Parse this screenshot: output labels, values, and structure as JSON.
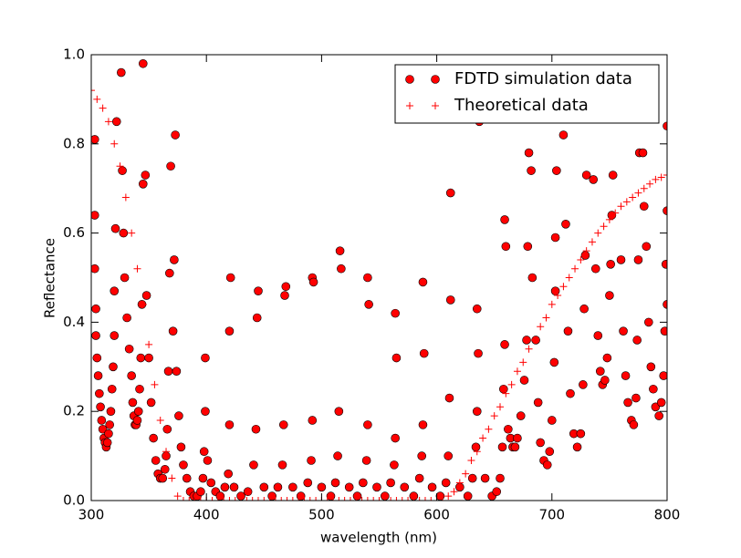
{
  "chart_data": {
    "type": "scatter",
    "xlabel": "wavelength (nm)",
    "ylabel": "Reflectance",
    "xlim": [
      300,
      800
    ],
    "ylim": [
      0,
      1
    ],
    "xticks": [
      300,
      400,
      500,
      600,
      700,
      800
    ],
    "yticks": [
      {
        "value": 0,
        "label": "0.0"
      },
      0.2,
      0.4,
      0.6,
      0.8,
      {
        "value": 1,
        "label": "1.0"
      }
    ],
    "legend": "upper right",
    "series": [
      {
        "name": "FDTD simulation data",
        "color": "#ff0000",
        "marker": "o",
        "x": [
          303,
          303,
          303,
          304,
          304,
          305,
          306,
          307,
          308,
          309,
          310,
          311,
          312,
          313,
          314,
          315,
          316,
          317,
          318,
          319,
          320,
          320,
          321,
          322,
          326,
          327,
          328,
          329,
          331,
          333,
          335,
          336,
          337,
          338,
          339,
          340,
          341,
          342,
          343,
          344,
          345,
          345,
          347,
          348,
          350,
          352,
          354,
          356,
          358,
          360,
          362,
          364,
          365,
          366,
          367,
          368,
          369,
          373,
          372,
          371,
          374,
          376,
          378,
          380,
          383,
          386,
          389,
          392,
          395,
          397,
          398,
          399,
          399,
          401,
          404,
          408,
          412,
          416,
          419,
          420,
          420,
          421,
          424,
          430,
          436,
          441,
          443,
          444,
          445,
          450,
          457,
          462,
          466,
          467,
          468,
          469,
          475,
          482,
          488,
          491,
          492,
          492,
          493,
          500,
          508,
          512,
          514,
          515,
          516,
          517,
          524,
          531,
          536,
          539,
          540,
          540,
          541,
          548,
          555,
          560,
          563,
          564,
          564,
          565,
          572,
          580,
          585,
          587,
          588,
          588,
          589,
          596,
          603,
          608,
          610,
          611,
          612,
          612,
          620,
          627,
          631,
          634,
          635,
          635,
          636,
          637,
          642,
          648,
          652,
          655,
          657,
          658,
          659,
          659,
          660,
          662,
          664,
          666,
          668,
          670,
          673,
          676,
          678,
          679,
          680,
          682,
          683,
          686,
          688,
          690,
          693,
          696,
          698,
          700,
          702,
          703,
          703,
          704,
          710,
          712,
          714,
          716,
          719,
          722,
          725,
          727,
          728,
          729,
          730,
          736,
          738,
          740,
          742,
          744,
          746,
          748,
          750,
          751,
          752,
          753,
          760,
          762,
          764,
          766,
          769,
          771,
          773,
          774,
          775,
          776,
          779,
          780,
          782,
          784,
          786,
          788,
          790,
          793,
          795,
          797,
          798,
          799,
          800,
          800,
          800
        ],
        "values": [
          0.81,
          0.64,
          0.52,
          0.43,
          0.37,
          0.32,
          0.28,
          0.24,
          0.21,
          0.18,
          0.16,
          0.14,
          0.13,
          0.12,
          0.13,
          0.15,
          0.17,
          0.2,
          0.25,
          0.3,
          0.37,
          0.47,
          0.61,
          0.85,
          0.96,
          0.74,
          0.6,
          0.5,
          0.41,
          0.34,
          0.28,
          0.22,
          0.19,
          0.17,
          0.17,
          0.18,
          0.2,
          0.25,
          0.32,
          0.44,
          0.71,
          0.98,
          0.73,
          0.46,
          0.32,
          0.22,
          0.14,
          0.09,
          0.06,
          0.05,
          0.05,
          0.07,
          0.1,
          0.16,
          0.29,
          0.51,
          0.75,
          0.82,
          0.54,
          0.38,
          0.29,
          0.19,
          0.12,
          0.08,
          0.05,
          0.02,
          0.01,
          0.01,
          0.02,
          0.05,
          0.11,
          0.2,
          0.32,
          0.09,
          0.04,
          0.02,
          0.01,
          0.03,
          0.06,
          0.17,
          0.38,
          0.5,
          0.03,
          0.01,
          0.02,
          0.08,
          0.16,
          0.41,
          0.47,
          0.03,
          0.01,
          0.03,
          0.08,
          0.17,
          0.46,
          0.48,
          0.03,
          0.01,
          0.04,
          0.09,
          0.18,
          0.5,
          0.49,
          0.03,
          0.01,
          0.04,
          0.1,
          0.2,
          0.56,
          0.52,
          0.03,
          0.01,
          0.04,
          0.09,
          0.17,
          0.5,
          0.44,
          0.03,
          0.01,
          0.04,
          0.08,
          0.14,
          0.42,
          0.32,
          0.03,
          0.01,
          0.05,
          0.1,
          0.17,
          0.49,
          0.33,
          0.03,
          0.01,
          0.04,
          0.1,
          0.23,
          0.69,
          0.45,
          0.03,
          0.01,
          0.05,
          0.12,
          0.2,
          0.43,
          0.33,
          0.85,
          0.05,
          0.01,
          0.02,
          0.05,
          0.12,
          0.25,
          0.35,
          0.63,
          0.57,
          0.16,
          0.14,
          0.12,
          0.12,
          0.14,
          0.19,
          0.27,
          0.36,
          0.57,
          0.78,
          0.74,
          0.5,
          0.36,
          0.22,
          0.13,
          0.09,
          0.08,
          0.11,
          0.18,
          0.31,
          0.47,
          0.59,
          0.74,
          0.82,
          0.62,
          0.38,
          0.24,
          0.15,
          0.12,
          0.15,
          0.26,
          0.43,
          0.55,
          0.73,
          0.72,
          0.52,
          0.37,
          0.29,
          0.26,
          0.27,
          0.32,
          0.46,
          0.53,
          0.64,
          0.73,
          0.54,
          0.38,
          0.28,
          0.22,
          0.18,
          0.17,
          0.23,
          0.36,
          0.54,
          0.78,
          0.78,
          0.66,
          0.57,
          0.4,
          0.3,
          0.25,
          0.21,
          0.19,
          0.22,
          0.28,
          0.38,
          0.53,
          0.65,
          0.84,
          0.44
        ]
      },
      {
        "name": "Theoretical data",
        "color": "#ff0000",
        "marker": "+",
        "x": [
          300,
          305,
          310,
          315,
          320,
          325,
          330,
          335,
          340,
          345,
          350,
          355,
          360,
          365,
          370,
          375,
          380,
          385,
          390,
          395,
          400,
          405,
          410,
          415,
          420,
          425,
          430,
          435,
          440,
          445,
          450,
          455,
          460,
          465,
          470,
          475,
          480,
          485,
          490,
          495,
          500,
          505,
          510,
          515,
          520,
          525,
          530,
          535,
          540,
          545,
          550,
          555,
          560,
          565,
          570,
          575,
          580,
          585,
          590,
          595,
          600,
          605,
          610,
          615,
          620,
          625,
          630,
          635,
          640,
          645,
          650,
          655,
          660,
          665,
          670,
          675,
          680,
          685,
          690,
          695,
          700,
          705,
          710,
          715,
          720,
          725,
          730,
          735,
          740,
          745,
          750,
          755,
          760,
          765,
          770,
          775,
          780,
          785,
          790,
          795,
          800
        ],
        "values": [
          0.92,
          0.9,
          0.88,
          0.85,
          0.8,
          0.75,
          0.68,
          0.6,
          0.52,
          0.44,
          0.35,
          0.26,
          0.18,
          0.11,
          0.05,
          0.01,
          0,
          0,
          0,
          0,
          0,
          0,
          0,
          0,
          0,
          0,
          0,
          0,
          0,
          0,
          0,
          0,
          0,
          0,
          0,
          0,
          0,
          0,
          0,
          0,
          0,
          0,
          0,
          0,
          0,
          0,
          0,
          0,
          0,
          0,
          0,
          0,
          0,
          0,
          0,
          0,
          0,
          0,
          0,
          0,
          0,
          0,
          0.01,
          0.02,
          0.04,
          0.06,
          0.09,
          0.11,
          0.14,
          0.16,
          0.19,
          0.21,
          0.24,
          0.26,
          0.29,
          0.31,
          0.34,
          0.36,
          0.39,
          0.41,
          0.44,
          0.46,
          0.48,
          0.5,
          0.52,
          0.54,
          0.56,
          0.58,
          0.6,
          0.615,
          0.63,
          0.645,
          0.66,
          0.67,
          0.68,
          0.69,
          0.7,
          0.71,
          0.72,
          0.725,
          0.73
        ]
      }
    ]
  }
}
